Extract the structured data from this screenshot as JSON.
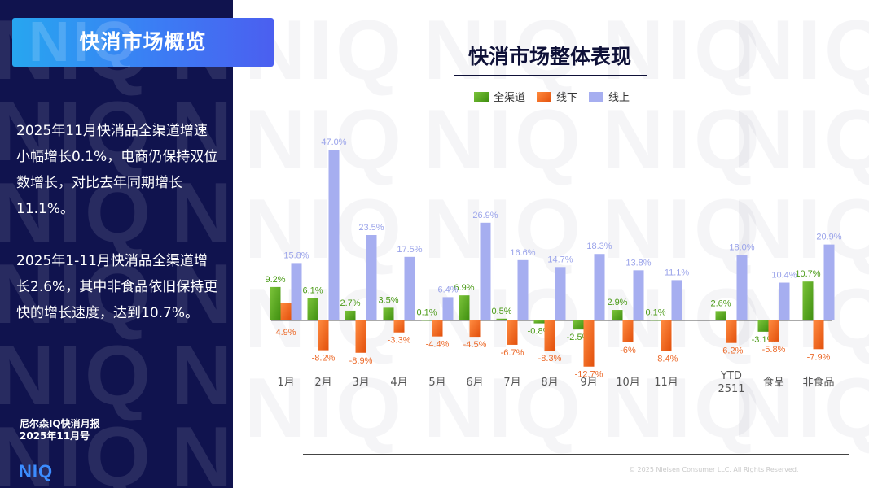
{
  "sidebar": {
    "title": "快消市场概览",
    "paragraph1": "2025年11月快消品全渠道增速小幅增长0.1%，电商仍保持双位数增长，对比去年同期增长11.1%。",
    "paragraph2": "2025年1-11月快消品全渠道增长2.6%，其中非食品依旧保持更快的增长速度，达到10.7%。",
    "report_line1": "尼尔森IQ快消月报",
    "report_line2": "2025年11月号",
    "logo": "NIQ"
  },
  "watermark_text": "NIQ",
  "copyright": "© 2025 Nielsen Consumer LLC. All Rights Reserved.",
  "colors": {
    "all_channel": "#55a81c",
    "offline": "#f0641e",
    "online": "#a6aef0",
    "sidebar_bg": "#10134e"
  },
  "chart_data": {
    "type": "bar",
    "title": "快消市场整体表现",
    "legend_position": "top-center",
    "categories": [
      "1月",
      "2月",
      "3月",
      "4月",
      "5月",
      "6月",
      "7月",
      "8月",
      "9月",
      "10月",
      "11月",
      "YTD 2511",
      "食品",
      "非食品"
    ],
    "series": [
      {
        "name": "全渠道",
        "values": [
          9.2,
          6.1,
          2.7,
          3.5,
          0.1,
          6.9,
          0.5,
          -0.8,
          -2.5,
          2.9,
          0.1,
          2.6,
          -3.1,
          10.7
        ],
        "labels": [
          "9.2%",
          "6.1%",
          "2.7%",
          "3.5%",
          "0.1%",
          "6.9%",
          "0.5%",
          "-0.8%",
          "-2.5%",
          "2.9%",
          "0.1%",
          "2.6%",
          "-3.1%",
          "10.7%"
        ]
      },
      {
        "name": "线下",
        "values": [
          4.9,
          -8.2,
          -8.9,
          -3.3,
          -4.4,
          -4.5,
          -6.7,
          -8.3,
          -12.7,
          -6,
          -8.4,
          -6.2,
          -5.8,
          -7.9
        ],
        "labels": [
          "4.9%",
          "-8.2%",
          "-8.9%",
          "-3.3%",
          "-4.4%",
          "-4.5%",
          "-6.7%",
          "-8.3%",
          "-12.7%",
          "-6%",
          "-8.4%",
          "-6.2%",
          "-5.8%",
          "-7.9%"
        ]
      },
      {
        "name": "线上",
        "values": [
          15.8,
          47.0,
          23.5,
          17.5,
          6.4,
          26.9,
          16.6,
          14.7,
          18.3,
          13.8,
          11.1,
          18.0,
          10.4,
          20.9
        ],
        "labels": [
          "15.8%",
          "47.0%",
          "23.5%",
          "17.5%",
          "6.4%",
          "26.9%",
          "16.6%",
          "14.7%",
          "18.3%",
          "13.8%",
          "11.1%",
          "18.0%",
          "10.4%",
          "20.9%"
        ]
      }
    ]
  }
}
